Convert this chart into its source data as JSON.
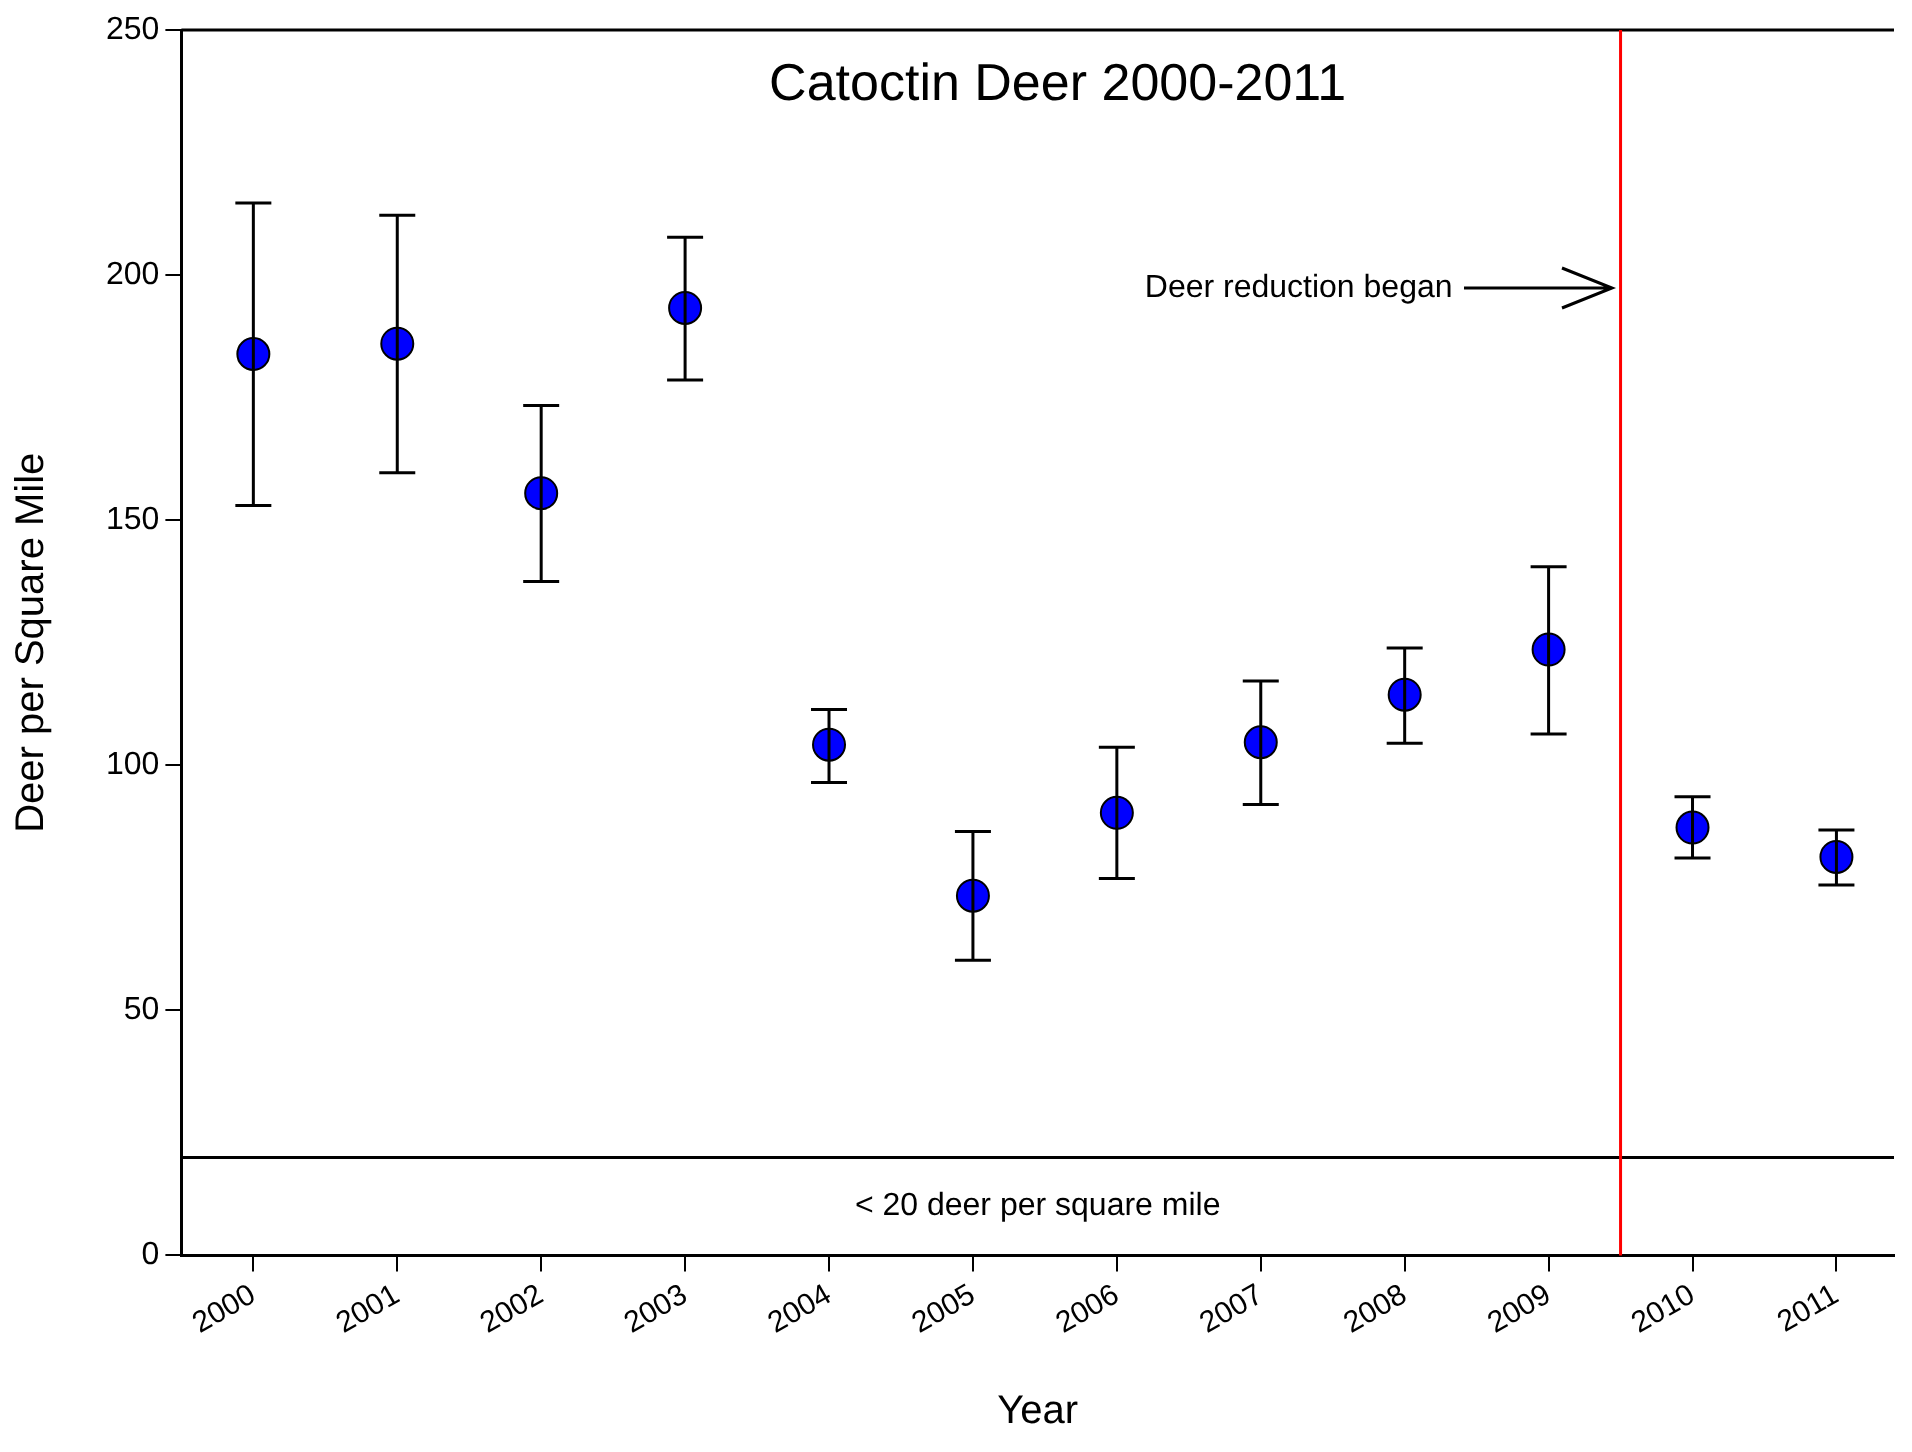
{
  "chart_data": {
    "type": "scatter",
    "title": "Catoctin Deer 2000-2011",
    "xlabel": "Year",
    "ylabel": "Deer per Square Mile",
    "x": [
      2000,
      2001,
      2002,
      2003,
      2004,
      2005,
      2006,
      2007,
      2008,
      2009,
      2010,
      2011
    ],
    "series": [
      {
        "color": "#0000ff",
        "values": [
          183.9,
          186.0,
          155.5,
          193.3,
          104.2,
          73.4,
          90.3,
          104.7,
          114.4,
          123.6,
          87.3,
          81.3
        ],
        "errors": [
          [
            153.0,
            214.7
          ],
          [
            159.7,
            212.2
          ],
          [
            137.5,
            173.4
          ],
          [
            178.6,
            207.7
          ],
          [
            96.5,
            111.4
          ],
          [
            60.2,
            86.5
          ],
          [
            76.9,
            103.7
          ],
          [
            92.0,
            117.2
          ],
          [
            104.5,
            123.9
          ],
          [
            106.4,
            140.5
          ],
          [
            81.1,
            93.6
          ],
          [
            75.6,
            86.8
          ]
        ]
      }
    ],
    "xlim": [
      1999.5,
      2011.4
    ],
    "xticks": [
      2000,
      2001,
      2002,
      2003,
      2004,
      2005,
      2006,
      2007,
      2008,
      2009,
      2010,
      2011
    ],
    "ylim": [
      0,
      250
    ],
    "yticks": [
      0,
      50,
      100,
      150,
      200,
      250
    ],
    "ref_lines": [
      {
        "axis": "y",
        "value": 20,
        "label": "< 20 deer per square mile",
        "color": "#000000"
      },
      {
        "axis": "x",
        "value": 2009.5,
        "label": "Deer reduction began",
        "color": "#ff0000"
      }
    ],
    "marker": "circle",
    "grid": false,
    "legend": false
  }
}
